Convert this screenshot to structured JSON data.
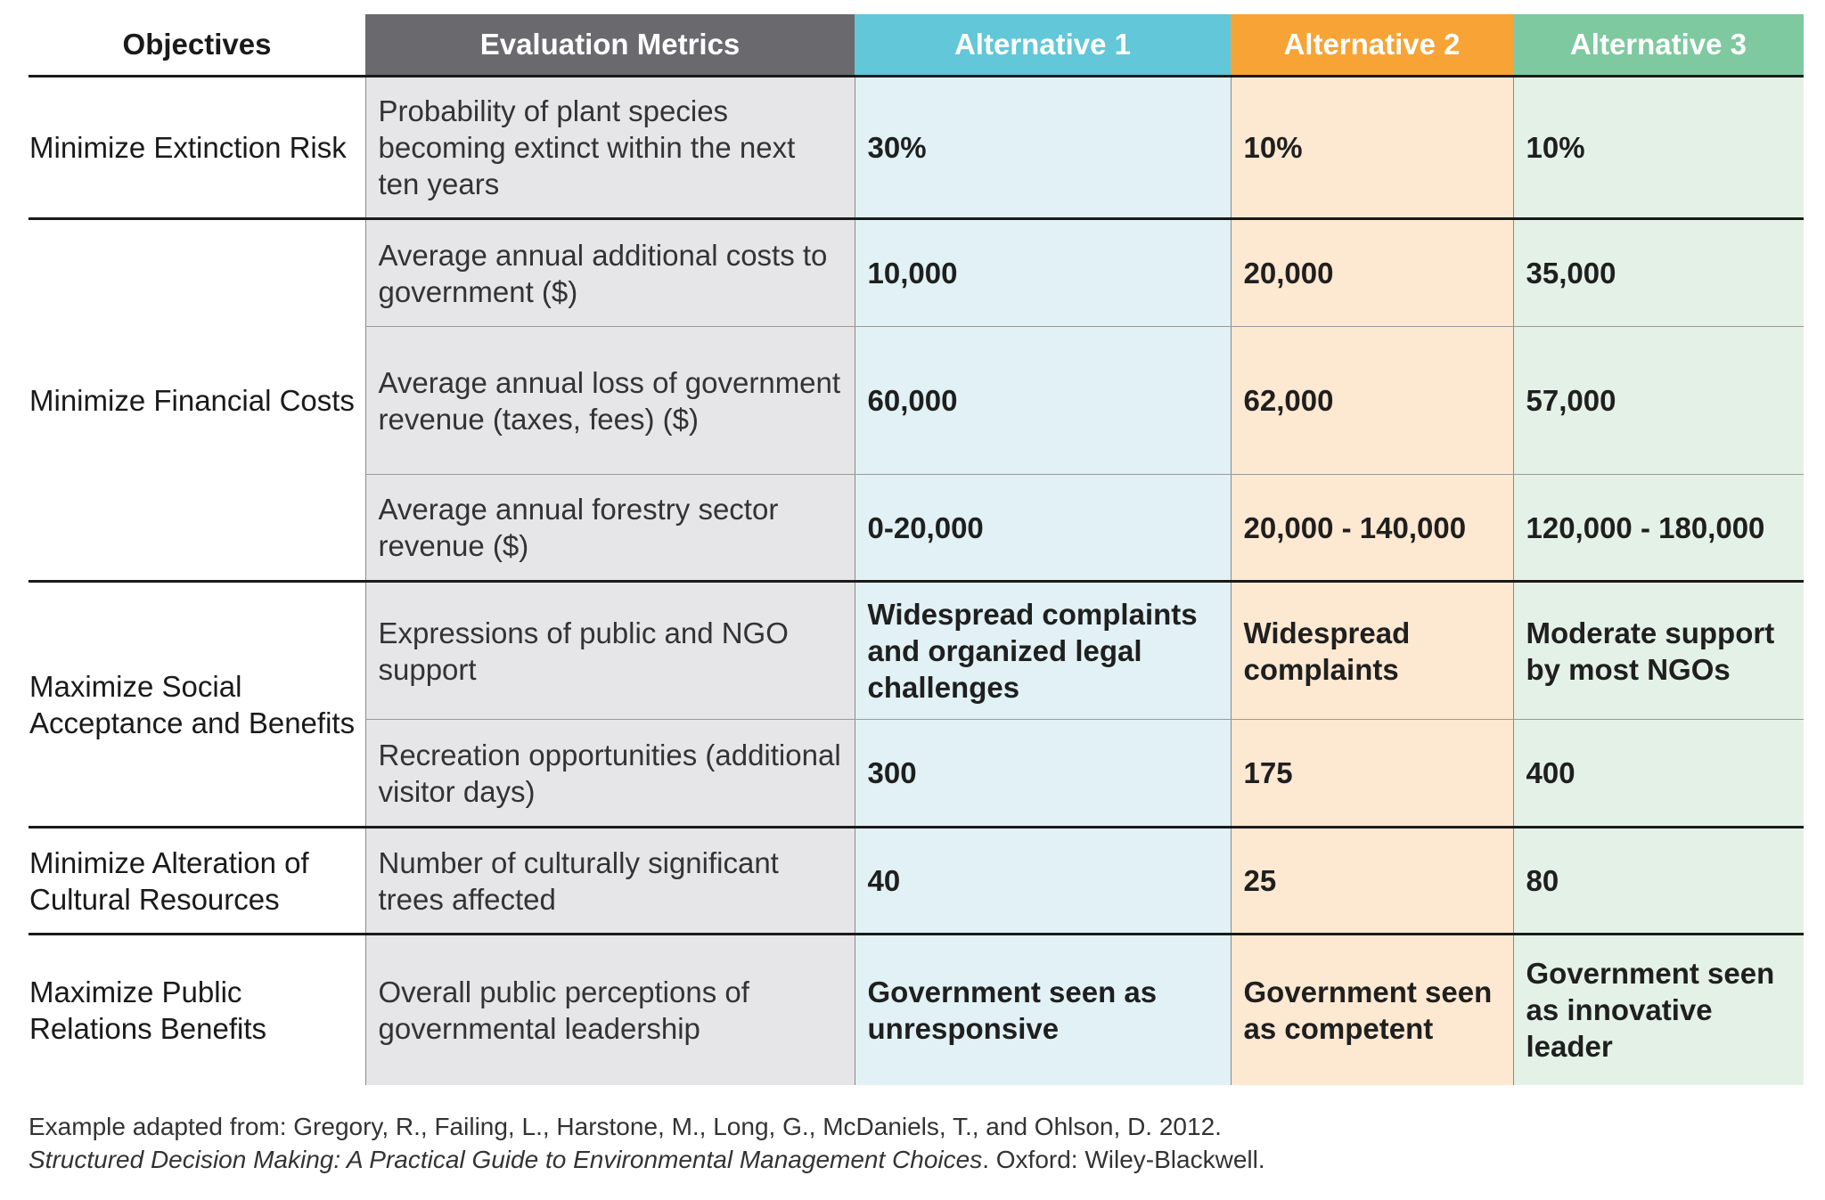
{
  "header": {
    "objectives": "Objectives",
    "metrics": "Evaluation Metrics",
    "alt1": "Alternative 1",
    "alt2": "Alternative 2",
    "alt3": "Alternative 3"
  },
  "colors": {
    "metrics_header": "#6a6a6e",
    "alt1_header": "#62c7d8",
    "alt2_header": "#f7a335",
    "alt3_header": "#7ec9a0",
    "metrics_cell": "#e6e6e8",
    "alt1_cell": "#e1f1f5",
    "alt2_cell": "#fde8d1",
    "alt3_cell": "#e4f1e7"
  },
  "rows": [
    {
      "objective": "Minimize Extinction Risk",
      "metric": "Probability of plant species becoming extinct within the next ten years",
      "alt1": "30%",
      "alt2": "10%",
      "alt3": "10%"
    },
    {
      "objective": "Minimize Financial Costs",
      "metric": "Average annual additional costs to government ($)",
      "alt1": "10,000",
      "alt2": "20,000",
      "alt3": "35,000"
    },
    {
      "metric": "Average annual loss of government revenue (taxes, fees) ($)",
      "alt1": "60,000",
      "alt2": "62,000",
      "alt3": "57,000"
    },
    {
      "metric": "Average annual forestry sector revenue ($)",
      "alt1": "0-20,000",
      "alt2": "20,000 - 140,000",
      "alt3": "120,000 - 180,000"
    },
    {
      "objective": "Maximize Social Acceptance and Benefits",
      "metric": "Expressions of public and NGO support",
      "alt1": "Widespread complaints and organized legal challenges",
      "alt2": "Widespread complaints",
      "alt3": "Moderate support by most NGOs"
    },
    {
      "metric": "Recreation opportunities (additional visitor days)",
      "alt1": "300",
      "alt2": "175",
      "alt3": "400"
    },
    {
      "objective": "Minimize Alteration of Cultural Resources",
      "metric": "Number of culturally significant trees affected",
      "alt1": "40",
      "alt2": "25",
      "alt3": "80"
    },
    {
      "objective": "Maximize Public Relations Benefits",
      "metric": "Overall public perceptions of governmental leadership",
      "alt1": "Government seen as unresponsive",
      "alt2": "Government seen as competent",
      "alt3": "Government seen as innovative leader"
    }
  ],
  "caption": {
    "line1": "Example adapted from: Gregory, R., Failing, L., Harstone, M., Long, G., McDaniels, T., and Ohlson, D. 2012.",
    "book_title": "Structured Decision Making: A Practical Guide to Environmental Management Choices",
    "publisher": ". Oxford: Wiley-Blackwell."
  }
}
